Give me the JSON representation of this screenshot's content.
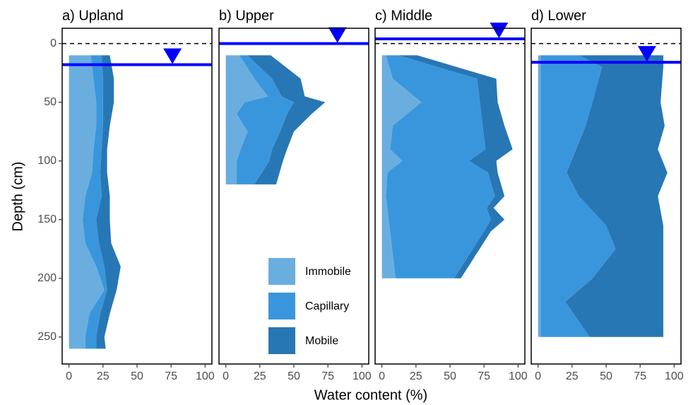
{
  "xlabel": "Water content (%)",
  "ylabel": "Depth (cm)",
  "chart_data": [
    {
      "type": "area",
      "title": "a) Upland",
      "xlim": [
        -5,
        105
      ],
      "ylim": [
        -13,
        273
      ],
      "xticks": [
        0,
        25,
        50,
        75,
        100
      ],
      "yticks": [
        0,
        50,
        100,
        150,
        200,
        250
      ],
      "reference_line": 0,
      "water_table": 18,
      "water_table_marker_x": 76,
      "y": [
        10,
        30,
        50,
        70,
        90,
        110,
        130,
        150,
        170,
        190,
        210,
        230,
        250,
        260
      ],
      "series": [
        {
          "name": "Immobile",
          "color": "#6aaee0",
          "values": [
            16,
            18,
            20,
            20,
            18,
            17,
            12,
            10,
            12,
            20,
            26,
            15,
            12,
            12
          ]
        },
        {
          "name": "Capillary",
          "color": "#3a96dc",
          "values": [
            8,
            7,
            5,
            5,
            6,
            6,
            12,
            10,
            10,
            6,
            2,
            8,
            8,
            8
          ]
        },
        {
          "name": "Mobile",
          "color": "#2777b5",
          "values": [
            6,
            8,
            8,
            5,
            4,
            5,
            6,
            10,
            9,
            12,
            7,
            7,
            6,
            7
          ]
        }
      ]
    },
    {
      "type": "area",
      "title": "b) Upper",
      "xlim": [
        -5,
        105
      ],
      "ylim": [
        -13,
        273
      ],
      "xticks": [
        0,
        25,
        50,
        75,
        100
      ],
      "reference_line": 0,
      "water_table": 0,
      "water_table_marker_x": 82,
      "legend": "bottom-right",
      "y": [
        10,
        30,
        45,
        50,
        60,
        75,
        90,
        100,
        120
      ],
      "series": [
        {
          "name": "Immobile",
          "color": "#6aaee0",
          "values": [
            10,
            21,
            31,
            14,
            8,
            16,
            11,
            8,
            8
          ]
        },
        {
          "name": "Capillary",
          "color": "#3a96dc",
          "values": [
            6,
            13,
            10,
            36,
            37,
            24,
            23,
            24,
            13
          ]
        },
        {
          "name": "Mobile",
          "color": "#2777b5",
          "values": [
            17,
            21,
            17,
            23,
            18,
            10,
            11,
            10,
            16
          ]
        }
      ]
    },
    {
      "type": "area",
      "title": "c) Middle",
      "xlim": [
        -5,
        105
      ],
      "ylim": [
        -13,
        273
      ],
      "xticks": [
        0,
        25,
        50,
        75,
        100
      ],
      "reference_line": 0,
      "water_table": -4,
      "water_table_marker_x": 86,
      "y": [
        10,
        30,
        50,
        70,
        90,
        100,
        110,
        130,
        140,
        150,
        160,
        200
      ],
      "series": [
        {
          "name": "Immobile",
          "color": "#6aaee0",
          "values": [
            3,
            8,
            29,
            8,
            6,
            15,
            4,
            3,
            4,
            5,
            6,
            10
          ]
        },
        {
          "name": "Capillary",
          "color": "#3a96dc",
          "values": [
            9,
            62,
            43,
            66,
            70,
            49,
            74,
            80,
            73,
            75,
            69,
            43
          ]
        },
        {
          "name": "Mobile",
          "color": "#2777b5",
          "values": [
            14,
            14,
            13,
            16,
            20,
            20,
            7,
            7,
            5,
            10,
            5,
            5
          ]
        }
      ]
    },
    {
      "type": "area",
      "title": "d) Lower",
      "xlim": [
        -5,
        105
      ],
      "ylim": [
        -13,
        273
      ],
      "xticks": [
        0,
        25,
        50,
        75,
        100
      ],
      "reference_line": 0,
      "water_table": 16,
      "water_table_marker_x": 80,
      "y": [
        10,
        20,
        50,
        70,
        90,
        110,
        130,
        155,
        175,
        200,
        220,
        250
      ],
      "series": [
        {
          "name": "Immobile",
          "color": "#6aaee0",
          "values": [
            2,
            2,
            2,
            2,
            2,
            2,
            2,
            2,
            2,
            2,
            2,
            2
          ]
        },
        {
          "name": "Capillary",
          "color": "#3a96dc",
          "values": [
            28,
            45,
            38,
            33,
            26,
            19,
            28,
            48,
            55,
            38,
            18,
            36
          ]
        },
        {
          "name": "Mobile",
          "color": "#2777b5",
          "values": [
            62,
            45,
            50,
            58,
            60,
            74,
            58,
            42,
            35,
            52,
            72,
            54
          ]
        }
      ]
    }
  ]
}
